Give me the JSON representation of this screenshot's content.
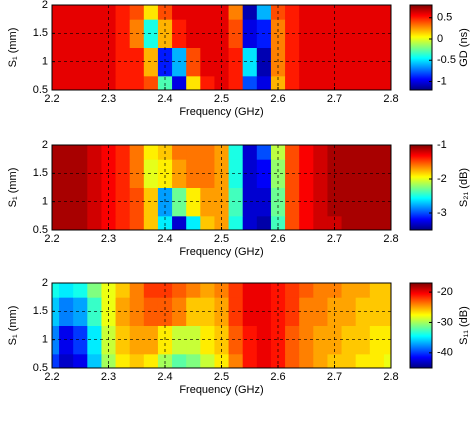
{
  "chart_data": [
    {
      "type": "heatmap",
      "xlabel": "Frequency (GHz)",
      "ylabel": "S₁ (mm)",
      "colorbar_label": "GD (ns)",
      "grid": true,
      "colormap": "jet",
      "x": [
        2.2,
        2.225,
        2.25,
        2.275,
        2.3,
        2.325,
        2.35,
        2.375,
        2.4,
        2.425,
        2.45,
        2.475,
        2.5,
        2.525,
        2.55,
        2.575,
        2.6,
        2.625,
        2.65,
        2.675,
        2.7,
        2.725,
        2.75,
        2.775,
        2.8
      ],
      "y": [
        0.5,
        1,
        1.5,
        2
      ],
      "z": [
        [
          0.6,
          0.6,
          0.6,
          0.6,
          0.6,
          0.5,
          0.5,
          0.4,
          -0.3,
          -1.0,
          0.1,
          0.5,
          0.6,
          0.5,
          -0.8,
          -1.0,
          0.2,
          0.5,
          0.6,
          0.6,
          0.6,
          0.6,
          0.6,
          0.6,
          0.6
        ],
        [
          0.6,
          0.6,
          0.6,
          0.6,
          0.6,
          0.5,
          0.5,
          0.2,
          -0.9,
          -0.6,
          0.4,
          0.6,
          0.6,
          0.5,
          -0.5,
          -1.1,
          0.3,
          0.5,
          0.6,
          0.6,
          0.6,
          0.6,
          0.6,
          0.6,
          0.6
        ],
        [
          0.6,
          0.6,
          0.6,
          0.6,
          0.6,
          0.5,
          0.3,
          -0.4,
          0.2,
          0.5,
          0.6,
          0.6,
          0.6,
          0.4,
          -1.0,
          -0.9,
          0.3,
          0.5,
          0.6,
          0.6,
          0.6,
          0.6,
          0.6,
          0.6,
          0.6
        ],
        [
          0.6,
          0.6,
          0.6,
          0.6,
          0.6,
          0.5,
          0.4,
          0.1,
          0.4,
          0.6,
          0.6,
          0.6,
          0.6,
          0.3,
          -1.1,
          -0.6,
          0.4,
          0.5,
          0.6,
          0.6,
          0.6,
          0.6,
          0.6,
          0.6,
          0.6
        ]
      ],
      "xlim": [
        2.2,
        2.8
      ],
      "xticks": [
        2.2,
        2.3,
        2.4,
        2.5,
        2.6,
        2.7,
        2.8
      ],
      "ylim": [
        0.5,
        2
      ],
      "yticks": [
        0.5,
        1,
        1.5,
        2
      ],
      "clim": [
        -1.2,
        0.8
      ],
      "cticks": [
        -1,
        -0.5,
        0,
        0.5
      ]
    },
    {
      "type": "heatmap",
      "xlabel": "Frequency (GHz)",
      "ylabel": "S₁ (mm)",
      "colorbar_label": "S₂₁ (dB)",
      "grid": true,
      "colormap": "jet",
      "x": [
        2.2,
        2.225,
        2.25,
        2.275,
        2.3,
        2.325,
        2.35,
        2.375,
        2.4,
        2.425,
        2.45,
        2.475,
        2.5,
        2.525,
        2.55,
        2.575,
        2.6,
        2.625,
        2.65,
        2.675,
        2.7,
        2.725,
        2.75,
        2.775,
        2.8
      ],
      "y": [
        0.5,
        1,
        1.5,
        2
      ],
      "z": [
        [
          -1.1,
          -1.1,
          -1.1,
          -1.2,
          -1.3,
          -1.4,
          -1.5,
          -1.8,
          -2.6,
          -3.3,
          -2.6,
          -1.8,
          -1.7,
          -2.5,
          -3.3,
          -3.4,
          -2.4,
          -1.5,
          -1.3,
          -1.2,
          -1.2,
          -1.1,
          -1.1,
          -1.1,
          -1.1
        ],
        [
          -1.1,
          -1.1,
          -1.1,
          -1.2,
          -1.3,
          -1.4,
          -1.5,
          -1.8,
          -2.8,
          -2.3,
          -1.9,
          -1.7,
          -1.7,
          -2.4,
          -3.3,
          -3.3,
          -2.3,
          -1.5,
          -1.3,
          -1.2,
          -1.1,
          -1.1,
          -1.1,
          -1.1,
          -1.1
        ],
        [
          -1.1,
          -1.1,
          -1.1,
          -1.2,
          -1.3,
          -1.4,
          -1.6,
          -2.0,
          -1.9,
          -1.7,
          -1.6,
          -1.6,
          -1.7,
          -2.5,
          -3.3,
          -3.2,
          -2.2,
          -1.5,
          -1.3,
          -1.2,
          -1.1,
          -1.1,
          -1.1,
          -1.1,
          -1.1
        ],
        [
          -1.1,
          -1.1,
          -1.1,
          -1.2,
          -1.3,
          -1.4,
          -1.6,
          -1.9,
          -1.8,
          -1.6,
          -1.6,
          -1.6,
          -1.7,
          -2.5,
          -3.3,
          -3.0,
          -2.1,
          -1.5,
          -1.3,
          -1.2,
          -1.1,
          -1.1,
          -1.1,
          -1.1,
          -1.1
        ]
      ],
      "xlim": [
        2.2,
        2.8
      ],
      "xticks": [
        2.2,
        2.3,
        2.4,
        2.5,
        2.6,
        2.7,
        2.8
      ],
      "ylim": [
        0.5,
        2
      ],
      "yticks": [
        0.5,
        1,
        1.5,
        2
      ],
      "clim": [
        -3.5,
        -1
      ],
      "cticks": [
        -3,
        -2,
        -1
      ]
    },
    {
      "type": "heatmap",
      "xlabel": "Frequency (GHz)",
      "ylabel": "S₁ (mm)",
      "colorbar_label": "S₁₁ (dB)",
      "grid": true,
      "colormap": "jet",
      "x": [
        2.2,
        2.225,
        2.25,
        2.275,
        2.3,
        2.325,
        2.35,
        2.375,
        2.4,
        2.425,
        2.45,
        2.475,
        2.5,
        2.525,
        2.55,
        2.575,
        2.6,
        2.625,
        2.65,
        2.675,
        2.7,
        2.725,
        2.75,
        2.775,
        2.8
      ],
      "y": [
        0.5,
        1,
        1.5,
        2
      ],
      "z": [
        [
          -40,
          -43,
          -42,
          -36,
          -30,
          -27,
          -26,
          -27,
          -30,
          -32,
          -31,
          -29,
          -27,
          -24,
          -21,
          -20,
          -21,
          -23,
          -24,
          -25,
          -26,
          -26,
          -27,
          -27,
          -28
        ],
        [
          -38,
          -42,
          -40,
          -35,
          -29,
          -26,
          -25,
          -25,
          -27,
          -29,
          -29,
          -27,
          -26,
          -23,
          -21,
          -20,
          -21,
          -23,
          -24,
          -25,
          -25,
          -26,
          -26,
          -27,
          -27
        ],
        [
          -36,
          -38,
          -37,
          -33,
          -28,
          -25,
          -24,
          -23,
          -23,
          -24,
          -26,
          -26,
          -25,
          -22,
          -20,
          -20,
          -21,
          -22,
          -24,
          -24,
          -25,
          -25,
          -26,
          -26,
          -26
        ],
        [
          -34,
          -35,
          -34,
          -31,
          -28,
          -26,
          -24,
          -22,
          -22,
          -23,
          -24,
          -25,
          -24,
          -22,
          -20,
          -20,
          -21,
          -22,
          -23,
          -24,
          -24,
          -25,
          -25,
          -26,
          -26
        ]
      ],
      "xlim": [
        2.2,
        2.8
      ],
      "xticks": [
        2.2,
        2.3,
        2.4,
        2.5,
        2.6,
        2.7,
        2.8
      ],
      "ylim": [
        0.5,
        2
      ],
      "yticks": [
        0.5,
        1,
        1.5,
        2
      ],
      "clim": [
        -45,
        -17
      ],
      "cticks": [
        -40,
        -30,
        -20
      ]
    }
  ]
}
